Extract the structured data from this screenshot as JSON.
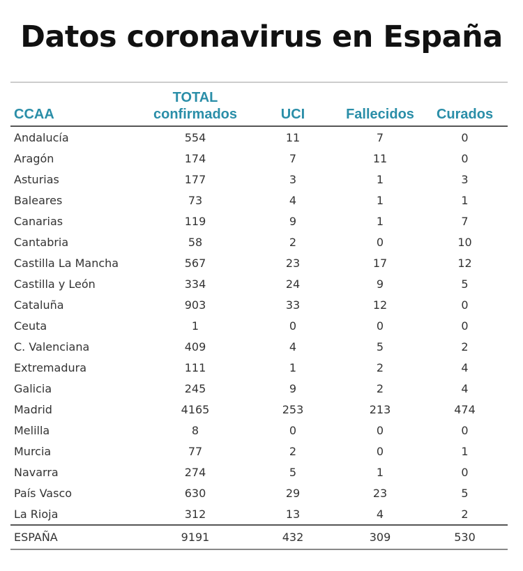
{
  "title": "Datos coronavirus en España",
  "table": {
    "header": [
      "CCAA",
      "TOTAL confirmados",
      "UCI",
      "Fallecidos",
      "Curados"
    ],
    "rows": [
      [
        "Andalucía",
        554,
        11,
        7,
        0
      ],
      [
        "Aragón",
        174,
        7,
        11,
        0
      ],
      [
        "Asturias",
        177,
        3,
        1,
        3
      ],
      [
        "Baleares",
        73,
        4,
        1,
        1
      ],
      [
        "Canarias",
        119,
        9,
        1,
        7
      ],
      [
        "Cantabria",
        58,
        2,
        0,
        10
      ],
      [
        "Castilla La Mancha",
        567,
        23,
        17,
        12
      ],
      [
        "Castilla y León",
        334,
        24,
        9,
        5
      ],
      [
        "Cataluña",
        903,
        33,
        12,
        0
      ],
      [
        "Ceuta",
        1,
        0,
        0,
        0
      ],
      [
        "C. Valenciana",
        409,
        4,
        5,
        2
      ],
      [
        "Extremadura",
        111,
        1,
        2,
        4
      ],
      [
        "Galicia",
        245,
        9,
        2,
        4
      ],
      [
        "Madrid",
        4165,
        253,
        213,
        474
      ],
      [
        "Melilla",
        8,
        0,
        0,
        0
      ],
      [
        "Murcia",
        77,
        2,
        0,
        1
      ],
      [
        "Navarra",
        274,
        5,
        1,
        0
      ],
      [
        "País Vasco",
        630,
        29,
        23,
        5
      ],
      [
        "La Rioja",
        312,
        13,
        4,
        2
      ]
    ],
    "total": [
      "ESPAÑA",
      9191,
      432,
      309,
      530
    ]
  }
}
